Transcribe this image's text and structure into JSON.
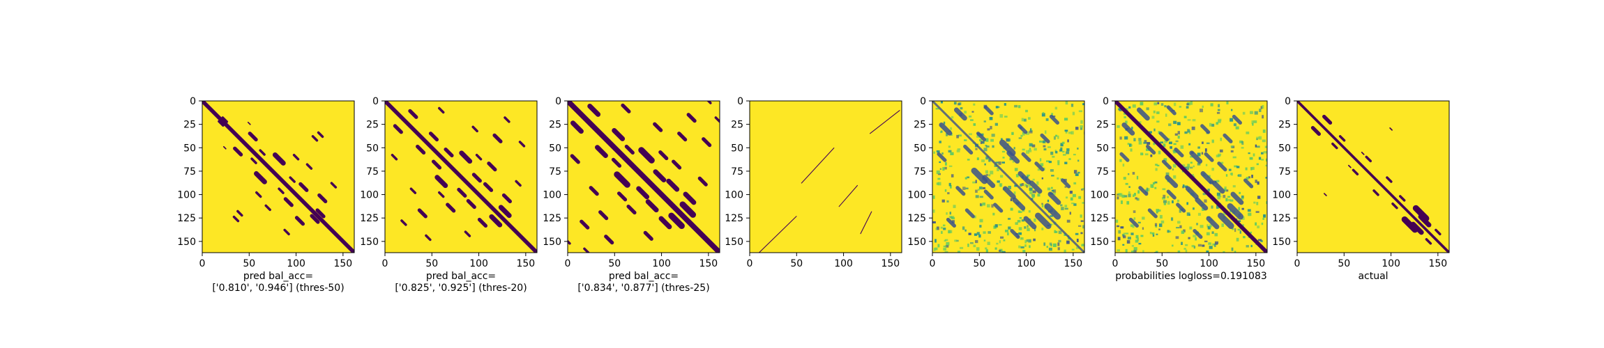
{
  "chart_data": [
    {
      "type": "heatmap",
      "variant": "binary",
      "title": "",
      "xlabel_lines": [
        "pred bal_acc=",
        "['0.810', '0.946'] (thres-50)"
      ],
      "ylabel": "",
      "xlim": [
        0,
        162
      ],
      "ylim": [
        162,
        0
      ],
      "xticks": [
        "0",
        "50",
        "100",
        "150"
      ],
      "yticks": [
        "0",
        "25",
        "50",
        "75",
        "100",
        "125",
        "150"
      ],
      "diag_width": 3,
      "off_diagonal_bands": [
        [
          20,
          24,
          2
        ],
        [
          38,
          54,
          3
        ],
        [
          55,
          64,
          2
        ],
        [
          62,
          82,
          4
        ],
        [
          84,
          96,
          2
        ],
        [
          92,
          108,
          3
        ],
        [
          120,
          126,
          3
        ],
        [
          40,
          120,
          2
        ],
        [
          104,
          128,
          3
        ],
        [
          60,
          100,
          2
        ],
        [
          36,
          126,
          2
        ],
        [
          70,
          114,
          2
        ],
        [
          90,
          140,
          2
        ],
        [
          24,
          50,
          1
        ]
      ]
    },
    {
      "type": "heatmap",
      "variant": "binary",
      "title": "",
      "xlabel_lines": [
        "pred bal_acc=",
        "['0.825', '0.925'] (thres-20)"
      ],
      "ylabel": "",
      "xlim": [
        0,
        162
      ],
      "ylim": [
        162,
        0
      ],
      "xticks": [
        "0",
        "50",
        "100",
        "150"
      ],
      "yticks": [
        "0",
        "25",
        "50",
        "75",
        "100",
        "125",
        "150"
      ],
      "diag_width": 3,
      "off_diagonal_bands": [
        [
          14,
          30,
          3
        ],
        [
          38,
          52,
          3
        ],
        [
          55,
          68,
          3
        ],
        [
          60,
          86,
          4
        ],
        [
          82,
          98,
          3
        ],
        [
          92,
          110,
          3
        ],
        [
          118,
          128,
          4
        ],
        [
          30,
          96,
          2
        ],
        [
          40,
          120,
          3
        ],
        [
          104,
          130,
          3
        ],
        [
          60,
          100,
          2
        ],
        [
          20,
          130,
          2
        ],
        [
          70,
          114,
          3
        ],
        [
          88,
          142,
          2
        ],
        [
          10,
          60,
          2
        ],
        [
          46,
          146,
          2
        ]
      ]
    },
    {
      "type": "heatmap",
      "variant": "binary",
      "title": "",
      "xlabel_lines": [
        "pred bal_acc=",
        "['0.834', '0.877'] (thres-25)"
      ],
      "ylabel": "",
      "xlim": [
        0,
        162
      ],
      "ylim": [
        162,
        0
      ],
      "xticks": [
        "0",
        "50",
        "100",
        "150"
      ],
      "yticks": [
        "0",
        "25",
        "50",
        "75",
        "100",
        "125",
        "150"
      ],
      "diag_width": 4,
      "off_diagonal_bands": [
        [
          10,
          28,
          4
        ],
        [
          36,
          54,
          4
        ],
        [
          52,
          66,
          3
        ],
        [
          58,
          84,
          5
        ],
        [
          80,
          98,
          4
        ],
        [
          90,
          112,
          4
        ],
        [
          116,
          128,
          5
        ],
        [
          28,
          96,
          3
        ],
        [
          38,
          122,
          3
        ],
        [
          104,
          130,
          4
        ],
        [
          58,
          102,
          3
        ],
        [
          18,
          132,
          3
        ],
        [
          68,
          116,
          3
        ],
        [
          86,
          144,
          3
        ],
        [
          8,
          62,
          3
        ],
        [
          44,
          148,
          3
        ],
        [
          0,
          150,
          2
        ],
        [
          20,
          160,
          2
        ]
      ]
    },
    {
      "type": "heatmap",
      "variant": "binary",
      "title": "",
      "xlabel_lines": [],
      "ylabel": "",
      "xlim": [
        0,
        162
      ],
      "ylim": [
        162,
        0
      ],
      "xticks": [
        "0",
        "50",
        "100",
        "150"
      ],
      "yticks": [
        "0",
        "25",
        "50",
        "75",
        "100",
        "125",
        "150"
      ],
      "diag_width": 0,
      "thin_lines": [
        [
          [
            10,
            162
          ],
          [
            50,
            123
          ]
        ],
        [
          [
            55,
            88
          ],
          [
            90,
            50
          ]
        ],
        [
          [
            95,
            113
          ],
          [
            115,
            90
          ]
        ],
        [
          [
            118,
            142
          ],
          [
            130,
            118
          ]
        ],
        [
          [
            128,
            35
          ],
          [
            160,
            10
          ]
        ]
      ]
    },
    {
      "type": "heatmap",
      "variant": "probability",
      "title": "",
      "xlabel_lines": [],
      "ylabel": "",
      "xlim": [
        0,
        162
      ],
      "ylim": [
        162,
        0
      ],
      "xticks": [
        "0",
        "50",
        "100",
        "150"
      ],
      "yticks": [
        "0",
        "25",
        "50",
        "75",
        "100",
        "125",
        "150"
      ],
      "diag_width": 0,
      "off_diagonal_bands": [
        [
          14,
          30,
          4
        ],
        [
          38,
          52,
          3
        ],
        [
          50,
          80,
          5
        ],
        [
          60,
          86,
          4
        ],
        [
          82,
          98,
          4
        ],
        [
          92,
          110,
          4
        ],
        [
          118,
          128,
          5
        ],
        [
          30,
          96,
          3
        ],
        [
          40,
          120,
          3
        ],
        [
          104,
          130,
          4
        ],
        [
          60,
          100,
          3
        ],
        [
          20,
          130,
          3
        ],
        [
          70,
          114,
          3
        ],
        [
          88,
          142,
          3
        ],
        [
          10,
          60,
          3
        ]
      ]
    },
    {
      "type": "heatmap",
      "variant": "probability",
      "title": "",
      "xlabel_lines": [
        "probabilities logloss=0.191083"
      ],
      "ylabel": "",
      "xlim": [
        0,
        162
      ],
      "ylim": [
        162,
        0
      ],
      "xticks": [
        "0",
        "50",
        "100",
        "150"
      ],
      "yticks": [
        "0",
        "25",
        "50",
        "75",
        "100",
        "125",
        "150"
      ],
      "diag_width": 3,
      "off_diagonal_bands": [
        [
          14,
          30,
          4
        ],
        [
          38,
          52,
          3
        ],
        [
          55,
          68,
          3
        ],
        [
          60,
          86,
          4
        ],
        [
          82,
          98,
          4
        ],
        [
          92,
          110,
          4
        ],
        [
          118,
          128,
          5
        ],
        [
          30,
          96,
          3
        ],
        [
          40,
          120,
          3
        ],
        [
          104,
          130,
          4
        ],
        [
          60,
          100,
          3
        ],
        [
          20,
          130,
          3
        ],
        [
          70,
          114,
          3
        ],
        [
          88,
          142,
          3
        ],
        [
          10,
          60,
          3
        ]
      ]
    },
    {
      "type": "heatmap",
      "variant": "binary",
      "title": "",
      "xlabel_lines": [
        "actual"
      ],
      "ylabel": "",
      "xlim": [
        0,
        162
      ],
      "ylim": [
        162,
        0
      ],
      "xticks": [
        "0",
        "50",
        "100",
        "150"
      ],
      "yticks": [
        "0",
        "25",
        "50",
        "75",
        "100",
        "125",
        "150"
      ],
      "diag_width": 2,
      "off_diagonal_bands": [
        [
          20,
          32,
          3
        ],
        [
          40,
          48,
          2
        ],
        [
          62,
          76,
          2
        ],
        [
          84,
          98,
          2
        ],
        [
          104,
          112,
          2
        ],
        [
          120,
          132,
          5
        ],
        [
          128,
          136,
          4
        ],
        [
          30,
          100,
          1
        ],
        [
          56,
          70,
          1
        ],
        [
          140,
          150,
          2
        ]
      ]
    }
  ],
  "colors": {
    "dark": "#440154",
    "yellow": "#fde725",
    "viridis": [
      "#440154",
      "#3b528b",
      "#21918c",
      "#5ec962",
      "#fde725"
    ]
  }
}
